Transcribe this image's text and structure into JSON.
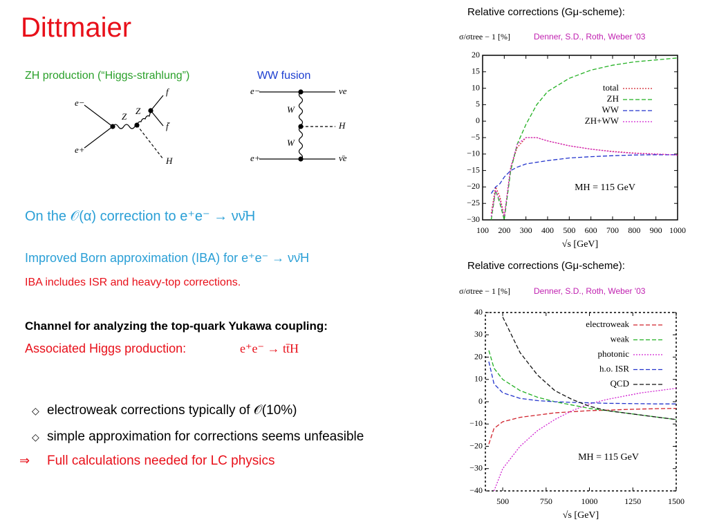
{
  "slide": {
    "title": "Dittmaier"
  },
  "diagrams": {
    "zh": {
      "title": "ZH production (“Higgs-strahlung”)",
      "labels": [
        "e−",
        "e+",
        "Z",
        "Z",
        "f",
        "f̄",
        "H"
      ]
    },
    "ww": {
      "title": "WW fusion",
      "labels": [
        "e−",
        "e+",
        "W",
        "W",
        "νe",
        "H",
        "ν̄e"
      ]
    }
  },
  "text": {
    "heading": "On the 𝒪(α) correction to e⁺e⁻ → νν̄H",
    "iba": "Improved Born approximation (IBA) for e⁺e⁻ → νν̄H",
    "iba_note": "IBA includes ISR and heavy-top corrections.",
    "channel": "Channel for analyzing the top-quark Yukawa coupling:",
    "assoc": "Associated Higgs production:",
    "assoc_proc": "e⁺e⁻ → tt̄H",
    "bullets": [
      {
        "marker": "◇",
        "text": "electroweak corrections typically of 𝒪(10%)"
      },
      {
        "marker": "◇",
        "text": "simple approximation for corrections seems unfeasible"
      },
      {
        "marker": "⇒",
        "text": "Full calculations needed for LC physics"
      }
    ]
  },
  "chart_data": [
    {
      "type": "line",
      "title": "Relative corrections (Gμ-scheme):",
      "ylabel": "σ/σtree − 1 [%]",
      "note": "Denner, S.D., Roth, Weber '03",
      "xlabel": "√s [GeV]",
      "annotation": "MH = 115 GeV",
      "x": [
        140,
        160,
        180,
        200,
        230,
        260,
        300,
        350,
        400,
        500,
        600,
        700,
        800,
        900,
        1000
      ],
      "series": [
        {
          "name": "total",
          "color": "#d0202a",
          "style": "dotted",
          "values": [
            -28,
            -20,
            -23,
            -29,
            -14,
            -8,
            -5,
            -5,
            -6,
            -7.5,
            -8.5,
            -9.2,
            -9.7,
            -10,
            -10.3
          ]
        },
        {
          "name": "ZH",
          "color": "#22b022",
          "style": "dashed",
          "values": [
            -30,
            -21,
            -25,
            -30,
            -15,
            -7,
            -1,
            5,
            9,
            13,
            15.5,
            17,
            18,
            18.6,
            19.2
          ]
        },
        {
          "name": "WW",
          "color": "#2233cc",
          "style": "dashed",
          "values": [
            -22,
            -20,
            -19,
            -17,
            -15,
            -14,
            -13,
            -12.5,
            -12,
            -11.2,
            -10.8,
            -10.5,
            -10.3,
            -10.2,
            -10.2
          ]
        },
        {
          "name": "ZH+WW",
          "color": "#d020d0",
          "style": "dotted",
          "values": [
            -29,
            -21,
            -24,
            -29,
            -14,
            -7,
            -5,
            -5,
            -6,
            -7.5,
            -8.5,
            -9.3,
            -9.8,
            -10,
            -10.3
          ]
        }
      ],
      "xlim": [
        100,
        1000
      ],
      "xticks": [
        100,
        200,
        300,
        400,
        500,
        600,
        700,
        800,
        900,
        1000
      ],
      "ylim": [
        -30,
        20
      ],
      "yticks": [
        20,
        15,
        10,
        5,
        0,
        {
          "value": -5,
          "label": "−5"
        },
        {
          "value": -10,
          "label": "−10"
        },
        {
          "value": -15,
          "label": "−15"
        },
        {
          "value": -20,
          "label": "−20"
        },
        {
          "value": -25,
          "label": "−25"
        },
        {
          "value": -30,
          "label": "−30"
        }
      ],
      "grid": false
    },
    {
      "type": "line",
      "title": "Relative corrections (Gμ-scheme):",
      "ylabel": "σ/σtree − 1 [%]",
      "note": "Denner, S.D., Roth, Weber '03",
      "xlabel": "√s [GeV]",
      "annotation": "MH = 115 GeV",
      "x": [
        420,
        450,
        500,
        600,
        700,
        800,
        900,
        1000,
        1100,
        1200,
        1300,
        1400,
        1500
      ],
      "series": [
        {
          "name": "electroweak",
          "color": "#d0202a",
          "style": "dashed",
          "values": [
            -19,
            -12,
            -9,
            -7,
            -6,
            -5,
            -4.5,
            -4,
            -3.8,
            -3.5,
            -3.3,
            -3.1,
            -3
          ]
        },
        {
          "name": "weak",
          "color": "#22b022",
          "style": "dashed",
          "values": [
            23,
            15,
            10,
            5,
            2,
            0,
            -1.5,
            -3,
            -4,
            -5,
            -6,
            -7,
            -8
          ]
        },
        {
          "name": "photonic",
          "color": "#d020d0",
          "style": "dotted",
          "values": [
            null,
            -40,
            -30,
            -20,
            -13,
            -8,
            -4,
            -1,
            1,
            2.5,
            4,
            5,
            6
          ]
        },
        {
          "name": "h.o. ISR",
          "color": "#2233cc",
          "style": "dashed",
          "values": [
            18,
            8,
            4,
            1.5,
            0.5,
            0,
            -0.3,
            -0.5,
            -0.7,
            -0.8,
            -0.9,
            -1,
            -1
          ]
        },
        {
          "name": "QCD",
          "color": "#111111",
          "style": "dashed",
          "values": [
            null,
            null,
            38,
            22,
            12,
            5,
            1,
            -2,
            -4,
            -5,
            -6,
            -7,
            -8
          ]
        }
      ],
      "xlim": [
        400,
        1500
      ],
      "xticks": [
        500,
        750,
        1000,
        1250,
        1500
      ],
      "ylim": [
        -40,
        40
      ],
      "yticks": [
        40,
        30,
        20,
        10,
        0,
        {
          "value": -10,
          "label": "−10"
        },
        {
          "value": -20,
          "label": "−20"
        },
        {
          "value": -30,
          "label": "−30"
        },
        {
          "value": -40,
          "label": "−40"
        }
      ],
      "grid": false
    }
  ]
}
